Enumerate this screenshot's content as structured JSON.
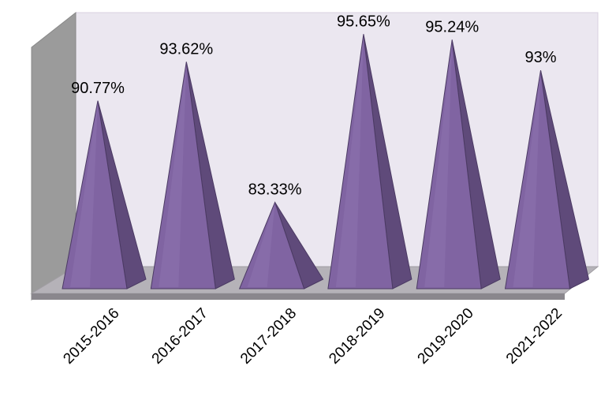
{
  "chart_data": {
    "type": "bar",
    "categories": [
      "2015-2016",
      "2016-2017",
      "2017-2018",
      "2018-2019",
      "2019-2020",
      "2021-2022"
    ],
    "values": [
      90.77,
      93.62,
      83.33,
      95.65,
      95.24,
      93
    ],
    "value_labels": [
      "90.77%",
      "93.62%",
      "83.33%",
      "95.65%",
      "95.24%",
      "93%"
    ],
    "title": "",
    "xlabel": "",
    "ylabel": "",
    "ylim": [
      77,
      97
    ],
    "grid": false,
    "legend": "none",
    "shape": "3d-pyramid",
    "colors": {
      "pyramid_front": "#8064a2",
      "pyramid_side": "#5f4a7a",
      "pyramid_highlight": "#957cb8",
      "pyramid_edge": "#4b3a63",
      "back_wall": "#ebe7f0",
      "side_wall": "#9b9b9b",
      "floor": "#b5b2b8",
      "floor_edge": "#8a878d"
    }
  }
}
